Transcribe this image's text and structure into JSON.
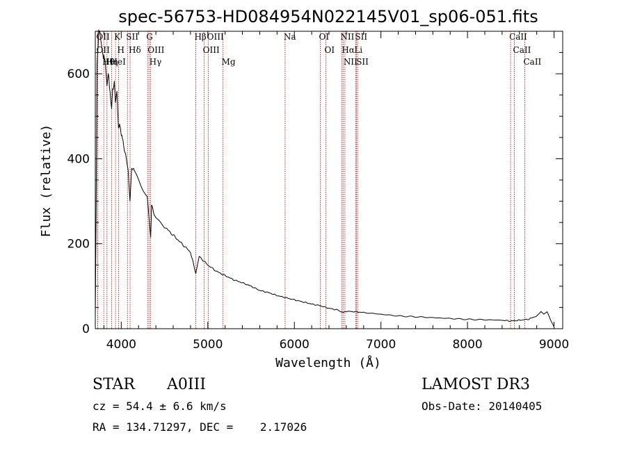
{
  "chart_data": {
    "type": "line",
    "title": "spec-56753-HD084954N022145V01_sp06-051.fits",
    "xlabel": "Wavelength (Å)",
    "ylabel": "Flux (relative)",
    "xlim": [
      3700,
      9100
    ],
    "ylim": [
      0,
      700
    ],
    "x_ticks": [
      4000,
      5000,
      6000,
      7000,
      8000,
      9000
    ],
    "x_tick_labels": [
      "4000",
      "5000",
      "6000",
      "7000",
      "8000",
      "9000"
    ],
    "y_ticks": [
      0,
      200,
      400,
      600
    ],
    "y_tick_labels": [
      "0",
      "200",
      "400",
      "600"
    ],
    "series": [
      {
        "name": "spectrum",
        "x": [
          3700,
          3710,
          3720,
          3740,
          3760,
          3780,
          3800,
          3820,
          3835,
          3850,
          3870,
          3889,
          3900,
          3920,
          3933,
          3950,
          3968,
          3980,
          4000,
          4020,
          4050,
          4080,
          4101,
          4120,
          4150,
          4200,
          4250,
          4300,
          4340,
          4350,
          4380,
          4400,
          4450,
          4500,
          4600,
          4700,
          4800,
          4861,
          4900,
          5000,
          5100,
          5200,
          5300,
          5400,
          5500,
          5600,
          5700,
          5800,
          5900,
          6000,
          6100,
          6200,
          6300,
          6400,
          6500,
          6563,
          6600,
          6700,
          6800,
          7000,
          7200,
          7400,
          7600,
          7800,
          8000,
          8200,
          8400,
          8500,
          8600,
          8700,
          8800,
          8850,
          8880,
          8920,
          8960,
          9000
        ],
        "y": [
          30,
          280,
          620,
          700,
          690,
          650,
          640,
          620,
          570,
          600,
          560,
          520,
          560,
          580,
          530,
          560,
          470,
          480,
          460,
          440,
          410,
          370,
          300,
          380,
          370,
          350,
          330,
          310,
          215,
          290,
          270,
          260,
          250,
          240,
          220,
          200,
          180,
          130,
          170,
          150,
          135,
          125,
          115,
          108,
          100,
          90,
          85,
          78,
          73,
          68,
          63,
          58,
          54,
          48,
          44,
          38,
          41,
          40,
          38,
          34,
          30,
          28,
          26,
          24,
          22,
          21,
          20,
          18,
          20,
          22,
          30,
          40,
          35,
          40,
          20,
          5
        ]
      }
    ],
    "lines": [
      {
        "label": "Hθ",
        "wavelength": 3798
      },
      {
        "label": "OII",
        "wavelength": 3727
      },
      {
        "label": "OII",
        "wavelength": 3729
      },
      {
        "label": "Hη",
        "wavelength": 3835
      },
      {
        "label": "HeI",
        "wavelength": 3889
      },
      {
        "label": "K",
        "wavelength": 3934
      },
      {
        "label": "H",
        "wavelength": 3969
      },
      {
        "label": "SII",
        "wavelength": 4072
      },
      {
        "label": "Hδ",
        "wavelength": 4102
      },
      {
        "label": "OIII",
        "wavelength": 4321
      },
      {
        "label": "Hγ",
        "wavelength": 4340
      },
      {
        "label": "G",
        "wavelength": 4305
      },
      {
        "label": "Hβ",
        "wavelength": 4861
      },
      {
        "label": "OIII",
        "wavelength": 4959
      },
      {
        "label": "OIII",
        "wavelength": 5007
      },
      {
        "label": "Mg",
        "wavelength": 5175
      },
      {
        "label": "Na",
        "wavelength": 5893
      },
      {
        "label": "OI",
        "wavelength": 6300
      },
      {
        "label": "OI",
        "wavelength": 6364
      },
      {
        "label": "Hα",
        "wavelength": 6563
      },
      {
        "label": "NII",
        "wavelength": 6548
      },
      {
        "label": "NII",
        "wavelength": 6584
      },
      {
        "label": "SII",
        "wavelength": 6717
      },
      {
        "label": "Li",
        "wavelength": 6708
      },
      {
        "label": "SII",
        "wavelength": 6731
      },
      {
        "label": "CaII",
        "wavelength": 8498
      },
      {
        "label": "CaII",
        "wavelength": 8542
      },
      {
        "label": "CaII",
        "wavelength": 8662
      }
    ]
  },
  "info": {
    "object_type": "STAR",
    "spectral_class": "A0III",
    "survey": "LAMOST DR3",
    "cz": "cz = 54.4 ± 6.6 km/s",
    "obs_date": "Obs-Date: 20140405",
    "coords": "RA = 134.71297, DEC =    2.17026"
  },
  "colors": {
    "spectrum": "#000000",
    "line_marker": "#cc0000",
    "axes": "#000000"
  }
}
